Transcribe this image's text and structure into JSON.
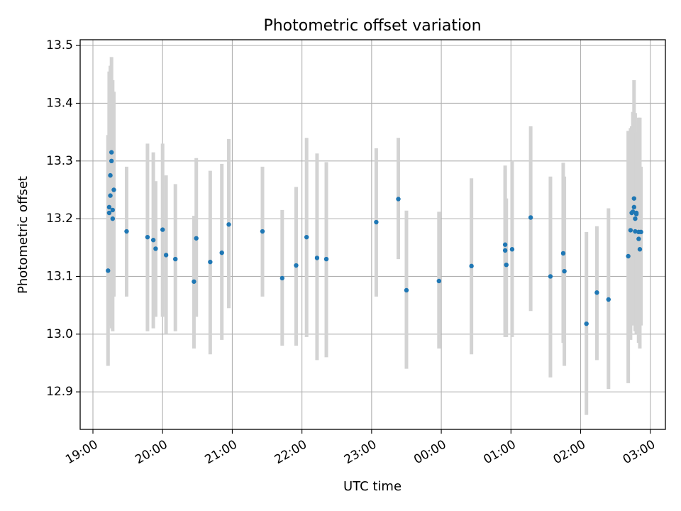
{
  "chart_data": {
    "type": "scatter",
    "title": "Photometric offset variation",
    "xlabel": "UTC time",
    "ylabel": "Photometric offset",
    "xlim": [
      "18:49",
      "03:13"
    ],
    "ylim": [
      12.835,
      13.51
    ],
    "grid": true,
    "x_tick_labels": [
      "19:00",
      "20:00",
      "21:00",
      "22:00",
      "23:00",
      "00:00",
      "01:00",
      "02:00",
      "03:00"
    ],
    "y_tick_labels": [
      "12.9",
      "13.0",
      "13.1",
      "13.2",
      "13.3",
      "13.4",
      "13.5"
    ],
    "y_ticks": [
      12.9,
      13.0,
      13.1,
      13.2,
      13.3,
      13.4,
      13.5
    ],
    "colors": {
      "points": "#1f77b4",
      "error_bars": "#d3d3d3",
      "grid": "#b0b0b0"
    },
    "series": [
      {
        "x": [
          "19:13",
          "19:14",
          "19:14",
          "19:15",
          "19:15",
          "19:16",
          "19:16",
          "19:17",
          "19:17",
          "19:18",
          "19:29",
          "19:47",
          "19:52",
          "19:54",
          "20:00",
          "20:03",
          "20:11",
          "20:27",
          "20:29",
          "20:41",
          "20:51",
          "20:57",
          "21:26",
          "21:43",
          "21:55",
          "22:04",
          "22:13",
          "22:21",
          "23:04",
          "23:23",
          "23:30",
          "23:58",
          "00:26",
          "00:55",
          "00:55",
          "00:56",
          "01:01",
          "01:17",
          "01:34",
          "01:45",
          "01:46",
          "02:05",
          "02:14",
          "02:24",
          "02:41",
          "02:43",
          "02:44",
          "02:45",
          "02:46",
          "02:46",
          "02:47",
          "02:47",
          "02:48",
          "02:48",
          "02:50",
          "02:50",
          "02:51",
          "02:52"
        ],
        "y": [
          13.11,
          13.21,
          13.22,
          13.275,
          13.24,
          13.315,
          13.3,
          13.2,
          13.215,
          13.25,
          13.178,
          13.168,
          13.163,
          13.148,
          13.181,
          13.137,
          13.13,
          13.091,
          13.166,
          13.125,
          13.141,
          13.19,
          13.178,
          13.097,
          13.119,
          13.168,
          13.132,
          13.13,
          13.194,
          13.234,
          13.076,
          13.092,
          13.118,
          13.155,
          13.145,
          13.12,
          13.147,
          13.202,
          13.1,
          13.14,
          13.109,
          13.018,
          13.072,
          13.06,
          13.135,
          13.18,
          13.21,
          13.212,
          13.235,
          13.22,
          13.2,
          13.178,
          13.208,
          13.21,
          13.165,
          13.177,
          13.147,
          13.177
        ],
        "yerr_low": [
          12.945,
          13.045,
          13.015,
          13.085,
          13.015,
          13.045,
          13.01,
          13.065,
          13.005,
          13.065,
          13.065,
          13.005,
          13.01,
          13.03,
          13.03,
          13.0,
          13.005,
          12.975,
          13.03,
          12.965,
          12.99,
          13.045,
          13.065,
          12.98,
          12.98,
          12.995,
          12.955,
          12.96,
          13.065,
          13.13,
          12.94,
          12.975,
          12.965,
          12.995,
          13.005,
          12.995,
          12.995,
          13.04,
          12.925,
          12.985,
          12.945,
          12.86,
          12.955,
          12.905,
          12.915,
          12.99,
          13.015,
          13.03,
          13.065,
          13.055,
          13.035,
          13.005,
          13.005,
          13.0,
          12.985,
          12.985,
          12.975,
          13.015
        ],
        "yerr_high": [
          13.345,
          13.4,
          13.455,
          13.465,
          13.445,
          13.48,
          13.39,
          13.32,
          13.44,
          13.42,
          13.29,
          13.33,
          13.315,
          13.265,
          13.33,
          13.275,
          13.26,
          13.205,
          13.305,
          13.283,
          13.295,
          13.338,
          13.29,
          13.215,
          13.255,
          13.34,
          13.313,
          13.298,
          13.322,
          13.34,
          13.214,
          13.212,
          13.27,
          13.292,
          13.285,
          13.235,
          13.3,
          13.36,
          13.273,
          13.297,
          13.273,
          13.177,
          13.187,
          13.218,
          13.352,
          13.357,
          13.36,
          13.385,
          13.44,
          13.38,
          13.368,
          13.383,
          13.35,
          13.335,
          13.37,
          13.375,
          13.375,
          13.29
        ]
      }
    ]
  }
}
